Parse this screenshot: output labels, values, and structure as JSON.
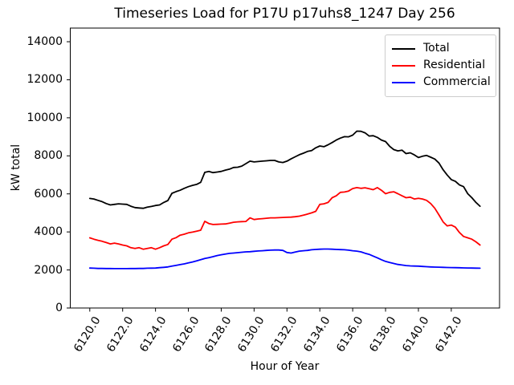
{
  "chart_data": {
    "type": "line",
    "title": "Timeseries Load for P17U p17uhs8_1247  Day 256",
    "xlabel": "Hour of Year",
    "ylabel": "kW total",
    "grid": false,
    "legend_position": "upper right",
    "xlim": [
      6118.8125,
      6144.9375
    ],
    "ylim": [
      0,
      14718
    ],
    "x_start": 6120.0,
    "x_step": 0.25,
    "x_ticks": {
      "values": [
        6120,
        6122,
        6124,
        6126,
        6128,
        6130,
        6132,
        6134,
        6136,
        6138,
        6140,
        6142
      ],
      "labels": [
        "6120.0",
        "6122.0",
        "6124.0",
        "6126.0",
        "6128.0",
        "6130.0",
        "6132.0",
        "6134.0",
        "6136.0",
        "6138.0",
        "6140.0",
        "6142.0"
      ]
    },
    "y_ticks": {
      "values": [
        0,
        2000,
        4000,
        6000,
        8000,
        10000,
        12000,
        14000
      ],
      "labels": [
        "0",
        "2000",
        "4000",
        "6000",
        "8000",
        "10000",
        "12000",
        "14000"
      ]
    },
    "series": [
      {
        "name": "Total",
        "color": "#000000",
        "values": [
          5760,
          5730,
          5660,
          5590,
          5490,
          5420,
          5450,
          5480,
          5460,
          5450,
          5350,
          5280,
          5260,
          5240,
          5300,
          5340,
          5390,
          5420,
          5550,
          5650,
          6030,
          6120,
          6190,
          6290,
          6380,
          6450,
          6500,
          6610,
          7130,
          7180,
          7120,
          7150,
          7180,
          7250,
          7300,
          7390,
          7400,
          7460,
          7590,
          7720,
          7680,
          7700,
          7720,
          7740,
          7760,
          7760,
          7680,
          7650,
          7720,
          7840,
          7950,
          8060,
          8140,
          8230,
          8280,
          8420,
          8520,
          8480,
          8580,
          8700,
          8830,
          8930,
          9010,
          9000,
          9090,
          9300,
          9290,
          9210,
          9040,
          9060,
          8970,
          8830,
          8750,
          8500,
          8330,
          8260,
          8300,
          8120,
          8160,
          8050,
          7910,
          7980,
          8020,
          7930,
          7830,
          7620,
          7270,
          6990,
          6750,
          6660,
          6470,
          6380,
          6010,
          5800,
          5550,
          5350
        ]
      },
      {
        "name": "Residential",
        "color": "#ff0000",
        "values": [
          3690,
          3620,
          3560,
          3510,
          3440,
          3370,
          3410,
          3370,
          3310,
          3270,
          3170,
          3130,
          3170,
          3090,
          3130,
          3170,
          3090,
          3170,
          3270,
          3340,
          3620,
          3700,
          3830,
          3880,
          3950,
          3990,
          4040,
          4090,
          4560,
          4440,
          4390,
          4400,
          4410,
          4420,
          4460,
          4510,
          4530,
          4540,
          4550,
          4740,
          4650,
          4680,
          4700,
          4720,
          4740,
          4740,
          4750,
          4760,
          4770,
          4780,
          4800,
          4830,
          4880,
          4940,
          5000,
          5080,
          5450,
          5480,
          5550,
          5800,
          5900,
          6080,
          6100,
          6150,
          6280,
          6330,
          6290,
          6320,
          6270,
          6220,
          6330,
          6190,
          6010,
          6080,
          6110,
          6010,
          5900,
          5800,
          5830,
          5730,
          5770,
          5730,
          5660,
          5490,
          5240,
          4890,
          4530,
          4320,
          4360,
          4250,
          3970,
          3760,
          3690,
          3620,
          3480,
          3310
        ]
      },
      {
        "name": "Commercial",
        "color": "#0000ff",
        "values": [
          2100,
          2090,
          2080,
          2080,
          2075,
          2075,
          2070,
          2070,
          2070,
          2070,
          2075,
          2075,
          2080,
          2080,
          2090,
          2095,
          2100,
          2120,
          2140,
          2160,
          2200,
          2240,
          2280,
          2320,
          2370,
          2420,
          2480,
          2540,
          2600,
          2650,
          2700,
          2760,
          2800,
          2840,
          2870,
          2890,
          2910,
          2930,
          2950,
          2960,
          2980,
          3000,
          3010,
          3030,
          3040,
          3050,
          3050,
          3030,
          2920,
          2890,
          2940,
          2990,
          3010,
          3030,
          3060,
          3080,
          3090,
          3100,
          3100,
          3090,
          3080,
          3070,
          3060,
          3040,
          3010,
          2990,
          2950,
          2880,
          2820,
          2730,
          2640,
          2540,
          2450,
          2390,
          2340,
          2290,
          2260,
          2230,
          2215,
          2205,
          2200,
          2185,
          2170,
          2160,
          2150,
          2145,
          2140,
          2130,
          2125,
          2120,
          2115,
          2110,
          2105,
          2100,
          2095,
          2090
        ]
      }
    ]
  }
}
